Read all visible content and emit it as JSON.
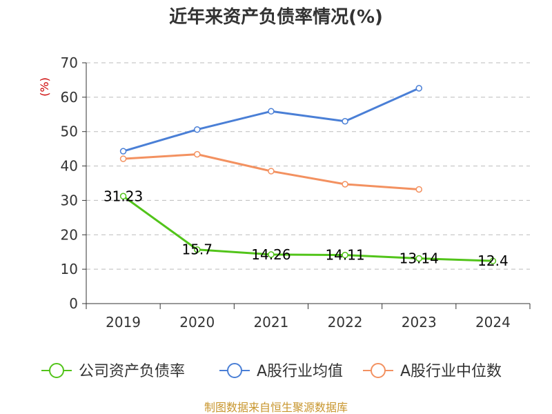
{
  "chart_data": {
    "type": "line",
    "title": "近年来资产负债率情况(%)",
    "ylabel": "(%)",
    "xlabel": "",
    "categories": [
      "2019",
      "2020",
      "2021",
      "2022",
      "2023",
      "2024"
    ],
    "ylim": [
      0,
      70
    ],
    "yticks": [
      0,
      10,
      20,
      30,
      40,
      50,
      60,
      70
    ],
    "grid": true,
    "legend_position": "bottom",
    "series": [
      {
        "name": "公司资产负债率",
        "color": "#52c41a",
        "values": [
          31.23,
          15.7,
          14.26,
          14.11,
          13.14,
          12.4
        ],
        "show_labels": true
      },
      {
        "name": "A股行业均值",
        "color": "#4a7fd6",
        "values": [
          44.3,
          50.6,
          55.9,
          53.0,
          62.6,
          null
        ],
        "show_labels": false
      },
      {
        "name": "A股行业中位数",
        "color": "#f39160",
        "values": [
          42.1,
          43.4,
          38.5,
          34.7,
          33.2,
          null
        ],
        "show_labels": false
      }
    ],
    "data_labels": [
      "31.23",
      "15.7",
      "14.26",
      "14.11",
      "13.14",
      "12.4"
    ]
  },
  "source": "制图数据来自恒生聚源数据库"
}
